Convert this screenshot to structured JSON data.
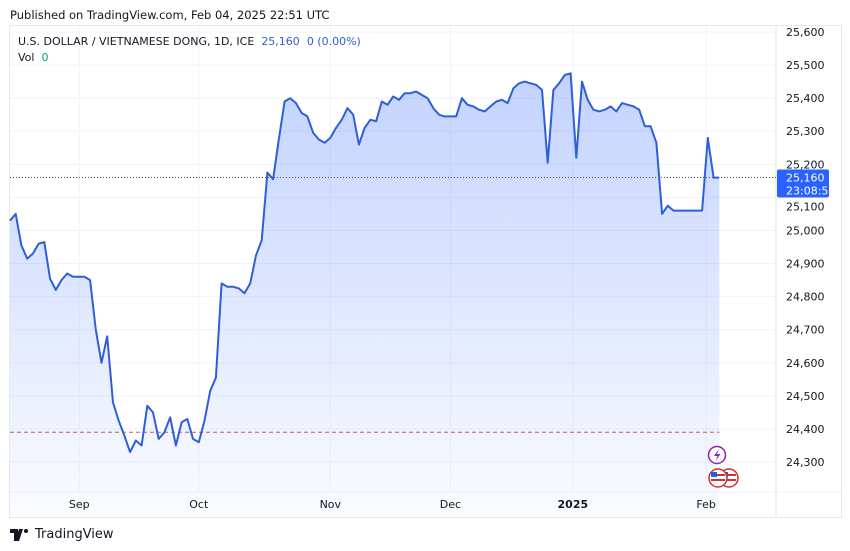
{
  "header": {
    "published": "Published on TradingView.com, Feb 04, 2025 22:51 UTC"
  },
  "legend": {
    "symbol": "U.S. DOLLAR / VIETNAMESE DONG, 1D, ICE",
    "price": "25,160",
    "change": "0 (0.00%)",
    "vol_label": "Vol",
    "vol_value": "0"
  },
  "price_label": {
    "price": "25,160",
    "countdown": "23:08:57"
  },
  "footer": {
    "brand": "TradingView"
  },
  "colors": {
    "line": "#2e5ed8",
    "label_bg": "#2962ff",
    "dashed_line": "#c45a5a"
  },
  "events": [
    "lightning-icon",
    "us-flag-icon",
    "us-flag-icon"
  ],
  "chart_data": {
    "type": "area",
    "title": "U.S. DOLLAR / VIETNAMESE DONG, 1D, ICE",
    "ylim": [
      24200,
      25650
    ],
    "y_ticks": [
      "25,600",
      "25,500",
      "25,400",
      "25,300",
      "25,200",
      "25,100",
      "25,000",
      "24,900",
      "24,800",
      "24,700",
      "24,600",
      "24,500",
      "24,400",
      "24,300"
    ],
    "y_tick_values": [
      25600,
      25500,
      25400,
      25300,
      25200,
      25100,
      25000,
      24900,
      24800,
      24700,
      24600,
      24500,
      24400,
      24300
    ],
    "x_ticks": [
      {
        "label": "Sep",
        "index": 12.1
      },
      {
        "label": "Oct",
        "index": 33
      },
      {
        "label": "Nov",
        "index": 56
      },
      {
        "label": "Dec",
        "index": 77
      },
      {
        "label": "2025",
        "index": 98.4,
        "bold": true
      },
      {
        "label": "Feb",
        "index": 121.7
      }
    ],
    "last_price": 25160,
    "dashed_level": 24390,
    "grid": true,
    "values": [
      25030,
      25050,
      24955,
      24915,
      24930,
      24960,
      24965,
      24855,
      24820,
      24850,
      24870,
      24860,
      24860,
      24860,
      24850,
      24700,
      24600,
      24680,
      24480,
      24425,
      24380,
      24330,
      24365,
      24350,
      24470,
      24450,
      24370,
      24390,
      24435,
      24350,
      24420,
      24430,
      24370,
      24360,
      24425,
      24515,
      24555,
      24840,
      24830,
      24830,
      24825,
      24810,
      24840,
      24925,
      24970,
      25175,
      25155,
      25275,
      25390,
      25400,
      25385,
      25355,
      25345,
      25295,
      25275,
      25265,
      25280,
      25310,
      25335,
      25370,
      25350,
      25260,
      25310,
      25335,
      25330,
      25390,
      25380,
      25405,
      25395,
      25415,
      25415,
      25420,
      25410,
      25400,
      25370,
      25350,
      25345,
      25345,
      25345,
      25400,
      25380,
      25375,
      25365,
      25360,
      25375,
      25390,
      25395,
      25385,
      25430,
      25445,
      25450,
      25445,
      25440,
      25425,
      25205,
      25425,
      25445,
      25470,
      25475,
      25220,
      25450,
      25395,
      25365,
      25360,
      25365,
      25375,
      25360,
      25385,
      25380,
      25375,
      25365,
      25315,
      25315,
      25265,
      25050,
      25075,
      25060,
      25060,
      25060,
      25060,
      25060,
      25060,
      25280,
      25160,
      25160
    ]
  }
}
